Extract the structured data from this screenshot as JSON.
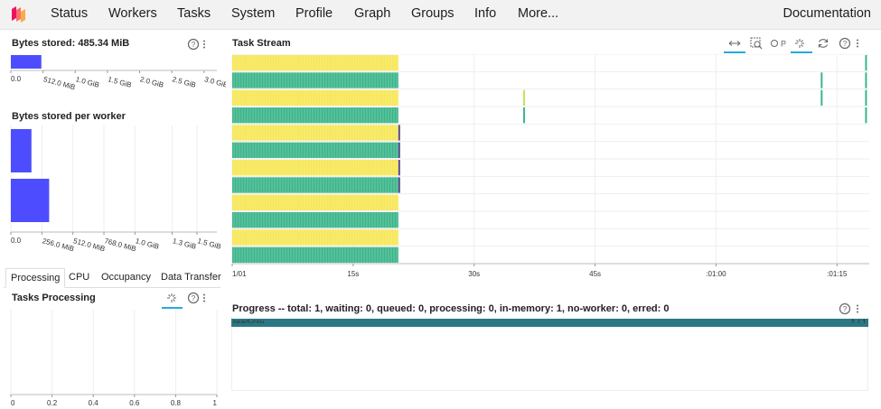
{
  "nav": {
    "items": [
      "Status",
      "Workers",
      "Tasks",
      "System",
      "Profile",
      "Graph",
      "Groups",
      "Info",
      "More..."
    ],
    "documentation": "Documentation"
  },
  "bytes_stored": {
    "title": "Bytes stored: 485.34 MiB",
    "value_bytes_gib": 0.474,
    "xlim_gib": [
      0,
      3.2
    ],
    "ticks": [
      "0.0",
      "512.0 MiB",
      "1.0 GiB",
      "1.5 GiB",
      "2.0 GiB",
      "2.5 GiB",
      "3.0 GiB"
    ]
  },
  "bytes_per_worker": {
    "title": "Bytes stored per worker",
    "xlim_mib": [
      0,
      1700
    ],
    "ticks": [
      "0.0",
      "256.0 MiB",
      "512.0 MiB",
      "768.0 MiB",
      "1.0 GiB",
      "1.3 GiB",
      "1.5 GiB"
    ],
    "workers_mib": [
      170,
      316
    ]
  },
  "tabs": {
    "items": [
      "Processing",
      "CPU",
      "Occupancy",
      "Data Transfer"
    ],
    "active": 0
  },
  "tasks_processing": {
    "title": "Tasks Processing",
    "ticks": [
      "0",
      "0.2",
      "0.4",
      "0.6",
      "0.8",
      "1"
    ]
  },
  "task_stream": {
    "title": "Task Stream",
    "xlim_s": [
      0,
      79
    ],
    "ticks": [
      {
        "label": "1/01",
        "s": 0
      },
      {
        "label": "15s",
        "s": 15
      },
      {
        "label": "30s",
        "s": 30
      },
      {
        "label": "45s",
        "s": 45
      },
      {
        "label": ":01:00",
        "s": 60
      },
      {
        "label": ":01:15",
        "s": 75
      }
    ],
    "lanes": 12,
    "main_end_s": 20.6,
    "colors": {
      "yellow": "#f6e75a",
      "green": "#3bb58b",
      "purple": "#5b4b92"
    },
    "late_marks": [
      {
        "lane": 3,
        "s": 36.2,
        "color": "#c8e05a"
      },
      {
        "lane": 4,
        "s": 36.2,
        "color": "#3bb58b"
      },
      {
        "lane": 2,
        "s": 73.1,
        "color": "#3bb58b"
      },
      {
        "lane": 3,
        "s": 73.1,
        "color": "#3bb58b"
      },
      {
        "lane": 1,
        "s": 78.6,
        "color": "#3bb58b"
      },
      {
        "lane": 2,
        "s": 78.6,
        "color": "#3bb58b"
      },
      {
        "lane": 3,
        "s": 78.6,
        "color": "#3bb58b"
      },
      {
        "lane": 4,
        "s": 78.6,
        "color": "#3bb58b"
      }
    ]
  },
  "progress": {
    "title": "Progress -- total: 1, waiting: 0, queued: 0, processing: 0, in-memory: 1, no-worker: 0, erred: 0",
    "bars": [
      {
        "name": "read-csv",
        "count": "1 / 1",
        "fraction": 1.0,
        "color": "#2b7884"
      }
    ]
  },
  "colors": {
    "bar_blue": "#4d4dff",
    "accent": "#26aae1"
  }
}
